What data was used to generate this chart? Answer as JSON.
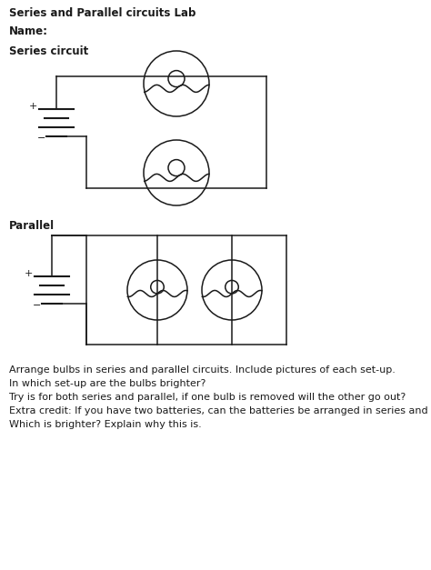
{
  "title": "Series and Parallel circuits Lab",
  "name_label": "Name:",
  "series_label": "Series circuit",
  "parallel_label": "Parallel",
  "bottom_text": [
    "Arrange bulbs in series and parallel circuits. Include pictures of each set-up.",
    "In which set-up are the bulbs brighter?",
    "Try is for both series and parallel, if one bulb is removed will the other go out?",
    "Extra credit: If you have two batteries, can the batteries be arranged in series and parallel.",
    "Which is brighter? Explain why this is."
  ],
  "bg_color": "#ffffff",
  "line_color": "#1a1a1a",
  "title_fontsize": 8.5,
  "label_fontsize": 8.5,
  "text_fontsize": 8.0,
  "bold_line": 1
}
